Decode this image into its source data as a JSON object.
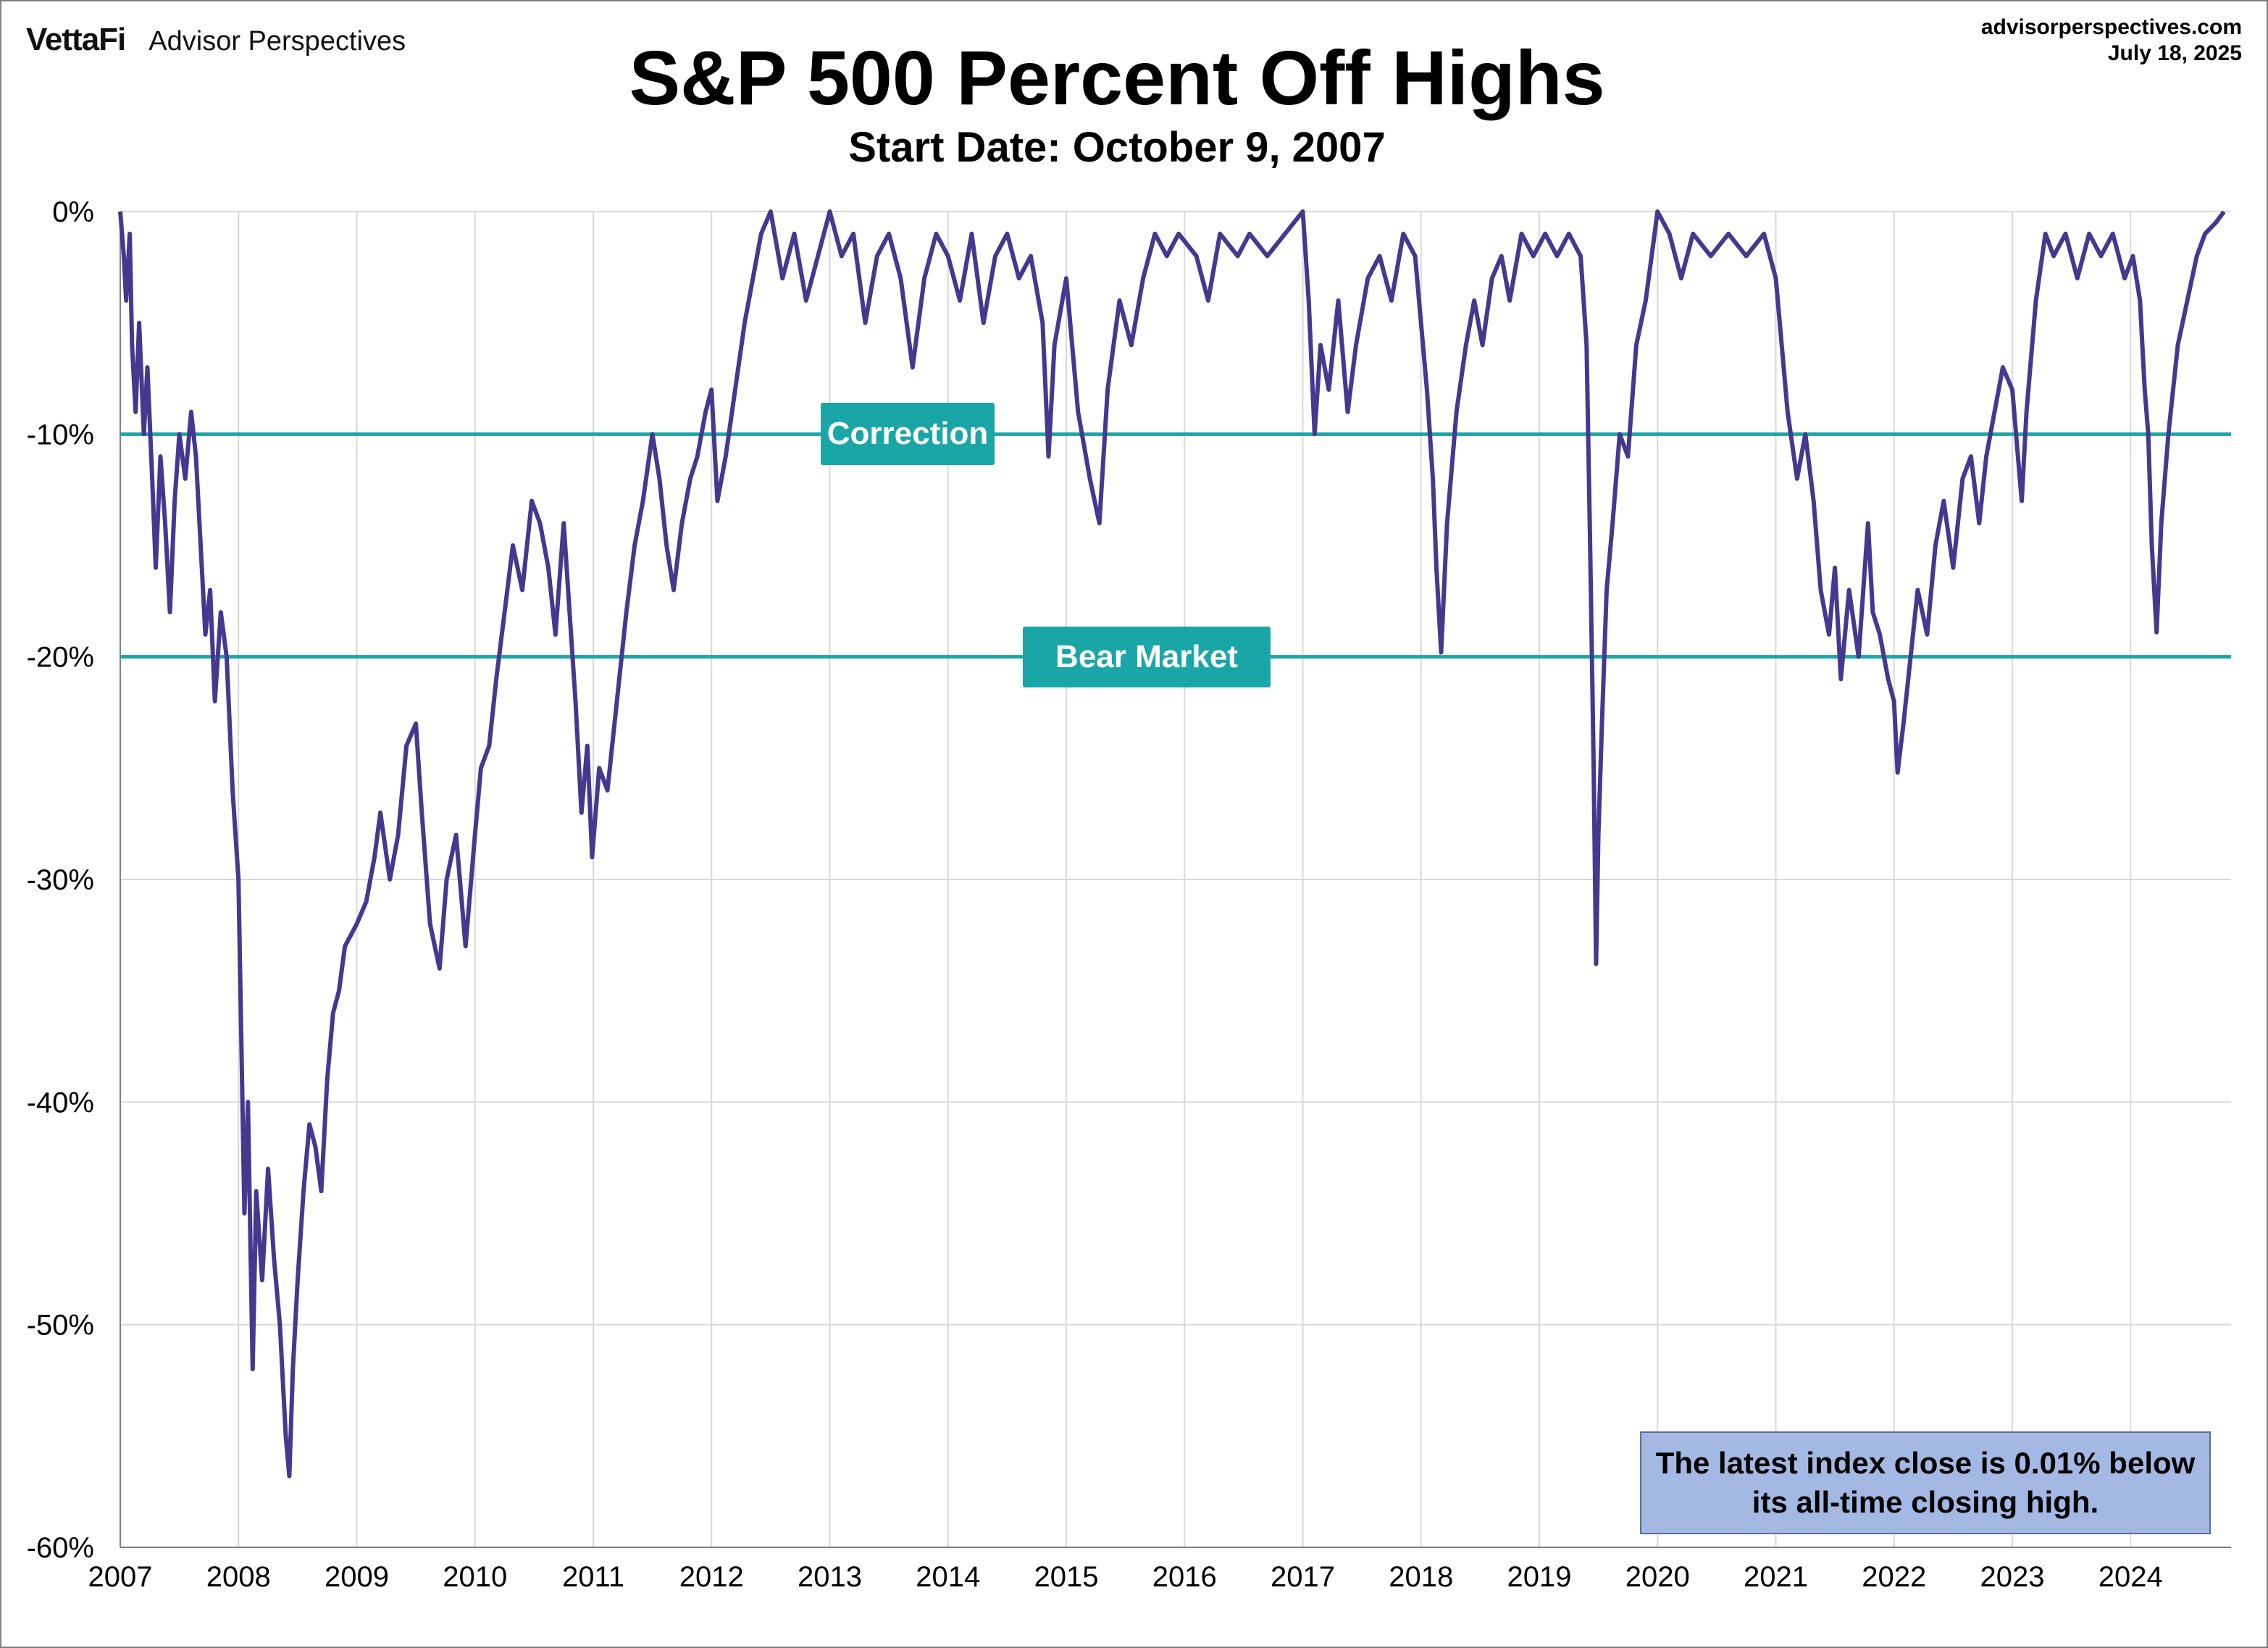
{
  "header": {
    "brand": "VettaFi",
    "brand_sub": "Advisor Perspectives",
    "site": "advisorperspectives.com",
    "date": "July 18, 2025"
  },
  "chart_data": {
    "type": "line",
    "title": "S&P 500 Percent Off Highs",
    "subtitle": "Start Date: October 9, 2007",
    "xlabel": "",
    "ylabel": "",
    "xlim": [
      2007.0,
      2024.85
    ],
    "ylim": [
      -60,
      0
    ],
    "y_ticks": [
      "0%",
      "-10%",
      "-20%",
      "-30%",
      "-40%",
      "-50%",
      "-60%"
    ],
    "x_ticks": [
      "2007",
      "2008",
      "2009",
      "2010",
      "2011",
      "2012",
      "2013",
      "2014",
      "2015",
      "2016",
      "2017",
      "2018",
      "2019",
      "2020",
      "2021",
      "2022",
      "2023",
      "2024"
    ],
    "grid": true,
    "series_color": "#45388f",
    "reference_color": "#1aa6a6",
    "reference_lines": [
      {
        "label": "Correction",
        "value": -10
      },
      {
        "label": "Bear Market",
        "value": -20
      }
    ],
    "series": [
      {
        "points": [
          [
            2007.0,
            0
          ],
          [
            2007.03,
            -2
          ],
          [
            2007.05,
            -4
          ],
          [
            2007.08,
            -1
          ],
          [
            2007.1,
            -6
          ],
          [
            2007.13,
            -9
          ],
          [
            2007.16,
            -5
          ],
          [
            2007.2,
            -10
          ],
          [
            2007.23,
            -7
          ],
          [
            2007.27,
            -12
          ],
          [
            2007.3,
            -16
          ],
          [
            2007.34,
            -11
          ],
          [
            2007.38,
            -14
          ],
          [
            2007.42,
            -18
          ],
          [
            2007.46,
            -13
          ],
          [
            2007.5,
            -10
          ],
          [
            2007.55,
            -12
          ],
          [
            2007.6,
            -9
          ],
          [
            2007.64,
            -11
          ],
          [
            2007.68,
            -15
          ],
          [
            2007.72,
            -19
          ],
          [
            2007.76,
            -17
          ],
          [
            2007.8,
            -22
          ],
          [
            2007.85,
            -18
          ],
          [
            2007.9,
            -20
          ],
          [
            2007.95,
            -26
          ],
          [
            2008.0,
            -30
          ],
          [
            2008.02,
            -36
          ],
          [
            2008.05,
            -45
          ],
          [
            2008.08,
            -40
          ],
          [
            2008.12,
            -52
          ],
          [
            2008.15,
            -44
          ],
          [
            2008.2,
            -48
          ],
          [
            2008.25,
            -43
          ],
          [
            2008.3,
            -47
          ],
          [
            2008.35,
            -50
          ],
          [
            2008.4,
            -55
          ],
          [
            2008.43,
            -56.8
          ],
          [
            2008.46,
            -52
          ],
          [
            2008.5,
            -48
          ],
          [
            2008.55,
            -44
          ],
          [
            2008.6,
            -41
          ],
          [
            2008.65,
            -42
          ],
          [
            2008.7,
            -44
          ],
          [
            2008.75,
            -39
          ],
          [
            2008.8,
            -36
          ],
          [
            2008.85,
            -35
          ],
          [
            2008.9,
            -33
          ],
          [
            2009.0,
            -32
          ],
          [
            2009.08,
            -31
          ],
          [
            2009.15,
            -29
          ],
          [
            2009.2,
            -27
          ],
          [
            2009.28,
            -30
          ],
          [
            2009.35,
            -28
          ],
          [
            2009.42,
            -24
          ],
          [
            2009.5,
            -23
          ],
          [
            2009.55,
            -27
          ],
          [
            2009.62,
            -32
          ],
          [
            2009.7,
            -34
          ],
          [
            2009.76,
            -30
          ],
          [
            2009.84,
            -28
          ],
          [
            2009.92,
            -33
          ],
          [
            2010.0,
            -28
          ],
          [
            2010.05,
            -25
          ],
          [
            2010.12,
            -24
          ],
          [
            2010.18,
            -21
          ],
          [
            2010.25,
            -18
          ],
          [
            2010.32,
            -15
          ],
          [
            2010.4,
            -17
          ],
          [
            2010.48,
            -13
          ],
          [
            2010.55,
            -14
          ],
          [
            2010.62,
            -16
          ],
          [
            2010.68,
            -19
          ],
          [
            2010.75,
            -14
          ],
          [
            2010.8,
            -18
          ],
          [
            2010.85,
            -22
          ],
          [
            2010.9,
            -27
          ],
          [
            2010.95,
            -24
          ],
          [
            2010.99,
            -29
          ],
          [
            2011.05,
            -25
          ],
          [
            2011.12,
            -26
          ],
          [
            2011.2,
            -22
          ],
          [
            2011.28,
            -18
          ],
          [
            2011.35,
            -15
          ],
          [
            2011.42,
            -13
          ],
          [
            2011.5,
            -10
          ],
          [
            2011.56,
            -12
          ],
          [
            2011.62,
            -15
          ],
          [
            2011.68,
            -17
          ],
          [
            2011.75,
            -14
          ],
          [
            2011.82,
            -12
          ],
          [
            2011.88,
            -11
          ],
          [
            2011.95,
            -9
          ],
          [
            2012.0,
            -8
          ],
          [
            2012.05,
            -13
          ],
          [
            2012.12,
            -11
          ],
          [
            2012.2,
            -8
          ],
          [
            2012.28,
            -5
          ],
          [
            2012.35,
            -3
          ],
          [
            2012.42,
            -1
          ],
          [
            2012.5,
            0
          ],
          [
            2012.6,
            -3
          ],
          [
            2012.7,
            -1
          ],
          [
            2012.8,
            -4
          ],
          [
            2012.9,
            -2
          ],
          [
            2013.0,
            0
          ],
          [
            2013.1,
            -2
          ],
          [
            2013.2,
            -1
          ],
          [
            2013.3,
            -5
          ],
          [
            2013.4,
            -2
          ],
          [
            2013.5,
            -1
          ],
          [
            2013.6,
            -3
          ],
          [
            2013.7,
            -7
          ],
          [
            2013.8,
            -3
          ],
          [
            2013.9,
            -1
          ],
          [
            2014.0,
            -2
          ],
          [
            2014.1,
            -4
          ],
          [
            2014.2,
            -1
          ],
          [
            2014.3,
            -5
          ],
          [
            2014.4,
            -2
          ],
          [
            2014.5,
            -1
          ],
          [
            2014.6,
            -3
          ],
          [
            2014.7,
            -2
          ],
          [
            2014.8,
            -5
          ],
          [
            2014.85,
            -11
          ],
          [
            2014.9,
            -6
          ],
          [
            2015.0,
            -3
          ],
          [
            2015.1,
            -9
          ],
          [
            2015.2,
            -12
          ],
          [
            2015.28,
            -14
          ],
          [
            2015.35,
            -8
          ],
          [
            2015.45,
            -4
          ],
          [
            2015.55,
            -6
          ],
          [
            2015.65,
            -3
          ],
          [
            2015.75,
            -1
          ],
          [
            2015.85,
            -2
          ],
          [
            2015.95,
            -1
          ],
          [
            2016.1,
            -2
          ],
          [
            2016.2,
            -4
          ],
          [
            2016.3,
            -1
          ],
          [
            2016.45,
            -2
          ],
          [
            2016.55,
            -1
          ],
          [
            2016.7,
            -2
          ],
          [
            2016.85,
            -1
          ],
          [
            2017.0,
            0
          ],
          [
            2017.05,
            -4
          ],
          [
            2017.1,
            -10
          ],
          [
            2017.15,
            -6
          ],
          [
            2017.22,
            -8
          ],
          [
            2017.3,
            -4
          ],
          [
            2017.38,
            -9
          ],
          [
            2017.45,
            -6
          ],
          [
            2017.55,
            -3
          ],
          [
            2017.65,
            -2
          ],
          [
            2017.75,
            -4
          ],
          [
            2017.85,
            -1
          ],
          [
            2017.95,
            -2
          ],
          [
            2018.0,
            -5
          ],
          [
            2018.05,
            -8
          ],
          [
            2018.1,
            -12
          ],
          [
            2018.13,
            -16
          ],
          [
            2018.17,
            -19.8
          ],
          [
            2018.22,
            -14
          ],
          [
            2018.3,
            -9
          ],
          [
            2018.38,
            -6
          ],
          [
            2018.45,
            -4
          ],
          [
            2018.52,
            -6
          ],
          [
            2018.6,
            -3
          ],
          [
            2018.68,
            -2
          ],
          [
            2018.75,
            -4
          ],
          [
            2018.85,
            -1
          ],
          [
            2018.95,
            -2
          ],
          [
            2019.05,
            -1
          ],
          [
            2019.15,
            -2
          ],
          [
            2019.25,
            -1
          ],
          [
            2019.35,
            -2
          ],
          [
            2019.4,
            -6
          ],
          [
            2019.43,
            -15
          ],
          [
            2019.46,
            -25
          ],
          [
            2019.48,
            -33.8
          ],
          [
            2019.5,
            -28
          ],
          [
            2019.53,
            -23
          ],
          [
            2019.57,
            -17
          ],
          [
            2019.62,
            -14
          ],
          [
            2019.68,
            -10
          ],
          [
            2019.75,
            -11
          ],
          [
            2019.82,
            -6
          ],
          [
            2019.9,
            -4
          ],
          [
            2019.95,
            -2
          ],
          [
            2020.0,
            0
          ],
          [
            2020.1,
            -1
          ],
          [
            2020.2,
            -3
          ],
          [
            2020.3,
            -1
          ],
          [
            2020.45,
            -2
          ],
          [
            2020.6,
            -1
          ],
          [
            2020.75,
            -2
          ],
          [
            2020.9,
            -1
          ],
          [
            2021.0,
            -3
          ],
          [
            2021.05,
            -6
          ],
          [
            2021.1,
            -9
          ],
          [
            2021.18,
            -12
          ],
          [
            2021.25,
            -10
          ],
          [
            2021.32,
            -13
          ],
          [
            2021.38,
            -17
          ],
          [
            2021.45,
            -19
          ],
          [
            2021.5,
            -16
          ],
          [
            2021.55,
            -21
          ],
          [
            2021.62,
            -17
          ],
          [
            2021.7,
            -20
          ],
          [
            2021.78,
            -14
          ],
          [
            2021.82,
            -18
          ],
          [
            2021.88,
            -19
          ],
          [
            2021.95,
            -21
          ],
          [
            2022.0,
            -22
          ],
          [
            2022.03,
            -25.2
          ],
          [
            2022.08,
            -23
          ],
          [
            2022.14,
            -20
          ],
          [
            2022.2,
            -17
          ],
          [
            2022.28,
            -19
          ],
          [
            2022.35,
            -15
          ],
          [
            2022.42,
            -13
          ],
          [
            2022.5,
            -16
          ],
          [
            2022.58,
            -12
          ],
          [
            2022.65,
            -11
          ],
          [
            2022.72,
            -14
          ],
          [
            2022.78,
            -11
          ],
          [
            2022.85,
            -9
          ],
          [
            2022.92,
            -7
          ],
          [
            2023.0,
            -8
          ],
          [
            2023.08,
            -13
          ],
          [
            2023.12,
            -9
          ],
          [
            2023.2,
            -4
          ],
          [
            2023.28,
            -1
          ],
          [
            2023.35,
            -2
          ],
          [
            2023.45,
            -1
          ],
          [
            2023.55,
            -3
          ],
          [
            2023.65,
            -1
          ],
          [
            2023.75,
            -2
          ],
          [
            2023.85,
            -1
          ],
          [
            2023.95,
            -3
          ],
          [
            2024.02,
            -2
          ],
          [
            2024.08,
            -4
          ],
          [
            2024.12,
            -8
          ],
          [
            2024.15,
            -10
          ],
          [
            2024.18,
            -15
          ],
          [
            2024.22,
            -18.9
          ],
          [
            2024.26,
            -14
          ],
          [
            2024.32,
            -10
          ],
          [
            2024.4,
            -6
          ],
          [
            2024.48,
            -4
          ],
          [
            2024.56,
            -2
          ],
          [
            2024.63,
            -1
          ],
          [
            2024.72,
            -0.5
          ],
          [
            2024.79,
            -0.01
          ]
        ]
      }
    ]
  },
  "annotation": "The latest index close is 0.01% below its all-time closing high."
}
